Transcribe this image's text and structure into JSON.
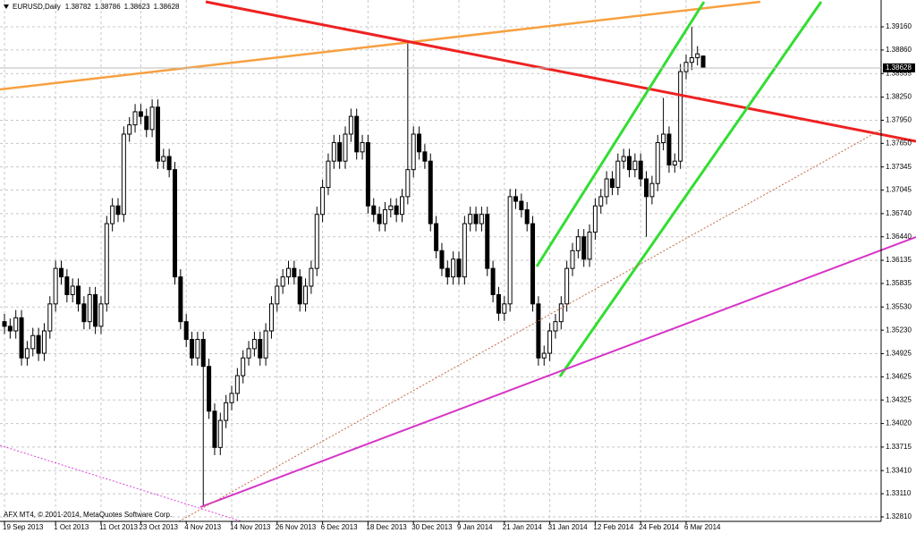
{
  "chart_data": {
    "type": "candlestick",
    "title": "EURUSD,Daily",
    "annotation": "AFX MT4, © 2001-2014, MetaQuotes Software Corp.",
    "categories": [
      "19 Sep 2013",
      null,
      null,
      null,
      null,
      null,
      null,
      null,
      null,
      "1 Oct 2013",
      null,
      null,
      null,
      null,
      null,
      null,
      null,
      "11 Oct 2013",
      null,
      null,
      null,
      null,
      null,
      null,
      "23 Oct 2013",
      null,
      null,
      null,
      null,
      null,
      null,
      null,
      "4 Nov 2013",
      null,
      null,
      null,
      null,
      null,
      null,
      null,
      "14 Nov 2013",
      null,
      null,
      null,
      null,
      null,
      null,
      null,
      "26 Nov 2013",
      null,
      null,
      null,
      null,
      null,
      null,
      null,
      "6 Dec 2013",
      null,
      null,
      null,
      null,
      null,
      null,
      null,
      "18 Dec 2013",
      null,
      null,
      null,
      null,
      null,
      null,
      null,
      "30 Dec 2013",
      null,
      null,
      null,
      null,
      null,
      null,
      null,
      "9 Jan 2014",
      null,
      null,
      null,
      null,
      null,
      null,
      null,
      "21 Jan 2014",
      null,
      null,
      null,
      null,
      null,
      null,
      null,
      "31 Jan 2014",
      null,
      null,
      null,
      null,
      null,
      null,
      null,
      "12 Feb 2014",
      null,
      null,
      null,
      null,
      null,
      null,
      null,
      "24 Feb 2014",
      null,
      null,
      null,
      null,
      null,
      null,
      null,
      "6 Mar 2014",
      null,
      null,
      null
    ],
    "open": [
      1.3534,
      1.3528,
      1.3522,
      1.3539,
      1.3487,
      1.3499,
      1.3516,
      1.3493,
      1.3522,
      1.3557,
      1.3603,
      1.3592,
      1.3569,
      1.358,
      1.3557,
      1.3534,
      1.3569,
      1.3528,
      1.3557,
      1.3661,
      1.3684,
      1.3673,
      1.3777,
      1.3789,
      1.3806,
      1.38,
      1.3783,
      1.3812,
      1.3742,
      1.3748,
      1.3731,
      1.3592,
      1.3534,
      1.3511,
      1.3487,
      1.3511,
      1.3476,
      1.3418,
      1.3371,
      1.3406,
      1.3429,
      1.3441,
      1.3464,
      1.3487,
      1.3499,
      1.3511,
      1.3487,
      1.3522,
      1.3557,
      1.358,
      1.3592,
      1.3603,
      1.3592,
      1.3557,
      1.358,
      1.3603,
      1.3673,
      1.3708,
      1.3742,
      1.3766,
      1.3742,
      1.3777,
      1.38,
      1.3754,
      1.3766,
      1.3684,
      1.3673,
      1.3661,
      1.3679,
      1.3684,
      1.3673,
      1.3696,
      1.3731,
      1.3777,
      1.3754,
      1.3742,
      1.3661,
      1.3626,
      1.3603,
      1.3592,
      1.3615,
      1.3592,
      1.3661,
      1.3673,
      1.3661,
      1.3673,
      1.3603,
      1.3569,
      1.3545,
      1.3557,
      1.3696,
      1.369,
      1.3679,
      1.3661,
      1.3557,
      1.3487,
      1.3493,
      1.3522,
      1.3534,
      1.3557,
      1.3603,
      1.3626,
      1.3644,
      1.3615,
      1.365,
      1.3684,
      1.3696,
      1.3719,
      1.3708,
      1.3742,
      1.3748,
      1.3731,
      1.3742,
      1.3719,
      1.3696,
      1.3713,
      1.3766,
      1.3777,
      1.3737,
      1.3742,
      1.3858,
      1.387,
      1.3876,
      1.38782
    ],
    "high": [
      1.3544,
      1.3538,
      1.3549,
      1.3549,
      1.3509,
      1.3526,
      1.3526,
      1.3532,
      1.3567,
      1.3613,
      1.3613,
      1.3602,
      1.359,
      1.359,
      1.3567,
      1.3579,
      1.3579,
      1.3567,
      1.3671,
      1.3694,
      1.3694,
      1.3787,
      1.3799,
      1.3816,
      1.3816,
      1.381,
      1.3822,
      1.3822,
      1.3758,
      1.3758,
      1.3741,
      1.3602,
      1.3544,
      1.3521,
      1.3521,
      1.3521,
      1.3486,
      1.3428,
      1.3416,
      1.3439,
      1.3451,
      1.3474,
      1.3497,
      1.3509,
      1.3521,
      1.3521,
      1.3532,
      1.3567,
      1.359,
      1.3602,
      1.3613,
      1.3613,
      1.3602,
      1.359,
      1.3613,
      1.3683,
      1.3718,
      1.3752,
      1.3776,
      1.3776,
      1.3787,
      1.381,
      1.381,
      1.3776,
      1.3776,
      1.3694,
      1.3683,
      1.3689,
      1.3694,
      1.3694,
      1.3706,
      1.3895,
      1.3787,
      1.3787,
      1.3764,
      1.3752,
      1.3671,
      1.3636,
      1.3613,
      1.3625,
      1.3625,
      1.3671,
      1.3683,
      1.3683,
      1.3683,
      1.3683,
      1.3613,
      1.3579,
      1.3567,
      1.3706,
      1.3706,
      1.37,
      1.3689,
      1.3671,
      1.3567,
      1.3503,
      1.3532,
      1.3544,
      1.3567,
      1.3613,
      1.3636,
      1.3654,
      1.3654,
      1.366,
      1.3694,
      1.3706,
      1.3729,
      1.3729,
      1.3752,
      1.3758,
      1.3758,
      1.3752,
      1.3752,
      1.3729,
      1.3723,
      1.3776,
      1.3824,
      1.3787,
      1.3752,
      1.3868,
      1.388,
      1.3916,
      1.3891,
      1.38786
    ],
    "low": [
      1.3518,
      1.3512,
      1.3512,
      1.3477,
      1.3477,
      1.3489,
      1.3483,
      1.3483,
      1.3512,
      1.3547,
      1.3582,
      1.3559,
      1.3559,
      1.3547,
      1.3524,
      1.3524,
      1.3518,
      1.3518,
      1.3547,
      1.3651,
      1.3663,
      1.3663,
      1.3767,
      1.3779,
      1.379,
      1.3773,
      1.3773,
      1.3732,
      1.3732,
      1.3721,
      1.3582,
      1.3524,
      1.3501,
      1.3477,
      1.3477,
      1.3296,
      1.3408,
      1.3361,
      1.3361,
      1.3396,
      1.3419,
      1.3431,
      1.3454,
      1.3477,
      1.3489,
      1.3477,
      1.3477,
      1.3512,
      1.3547,
      1.357,
      1.3582,
      1.3582,
      1.3547,
      1.3547,
      1.357,
      1.3593,
      1.3663,
      1.3698,
      1.3732,
      1.3732,
      1.3732,
      1.3767,
      1.3744,
      1.3744,
      1.3674,
      1.3663,
      1.3651,
      1.3651,
      1.3669,
      1.3663,
      1.3663,
      1.3686,
      1.3721,
      1.3744,
      1.3732,
      1.3651,
      1.3616,
      1.3593,
      1.3582,
      1.3582,
      1.3582,
      1.3582,
      1.3651,
      1.3651,
      1.3651,
      1.3593,
      1.3559,
      1.3535,
      1.3535,
      1.3547,
      1.368,
      1.3669,
      1.3651,
      1.3547,
      1.3477,
      1.3477,
      1.3483,
      1.3512,
      1.3524,
      1.3547,
      1.3593,
      1.3616,
      1.3605,
      1.3605,
      1.364,
      1.3674,
      1.3686,
      1.3698,
      1.3698,
      1.3732,
      1.3721,
      1.3721,
      1.3709,
      1.3644,
      1.3686,
      1.3703,
      1.3756,
      1.3727,
      1.3727,
      1.3732,
      1.3848,
      1.386,
      1.3866,
      1.38623
    ],
    "close": [
      1.3528,
      1.3522,
      1.3539,
      1.3487,
      1.3499,
      1.3516,
      1.3493,
      1.3522,
      1.3557,
      1.3603,
      1.3592,
      1.3569,
      1.358,
      1.3557,
      1.3534,
      1.3569,
      1.3528,
      1.3557,
      1.3661,
      1.3684,
      1.3673,
      1.3777,
      1.3789,
      1.3806,
      1.38,
      1.3783,
      1.3812,
      1.3742,
      1.3748,
      1.3731,
      1.3592,
      1.3534,
      1.3511,
      1.3487,
      1.3511,
      1.3476,
      1.3418,
      1.3371,
      1.3406,
      1.3429,
      1.3441,
      1.3464,
      1.3487,
      1.3499,
      1.3511,
      1.3487,
      1.3522,
      1.3557,
      1.358,
      1.3592,
      1.3603,
      1.3592,
      1.3557,
      1.358,
      1.3603,
      1.3673,
      1.3708,
      1.3742,
      1.3766,
      1.3742,
      1.3777,
      1.38,
      1.3754,
      1.3766,
      1.3684,
      1.3673,
      1.3661,
      1.3679,
      1.3684,
      1.3673,
      1.3696,
      1.3731,
      1.3777,
      1.3754,
      1.3742,
      1.3661,
      1.3626,
      1.3603,
      1.3592,
      1.3615,
      1.3592,
      1.3661,
      1.3673,
      1.3661,
      1.3673,
      1.3603,
      1.3569,
      1.3545,
      1.3557,
      1.3696,
      1.369,
      1.3679,
      1.3661,
      1.3557,
      1.3487,
      1.3493,
      1.3522,
      1.3534,
      1.3557,
      1.3603,
      1.3626,
      1.3644,
      1.3615,
      1.365,
      1.3684,
      1.3696,
      1.3719,
      1.3708,
      1.3742,
      1.3748,
      1.3731,
      1.3742,
      1.3719,
      1.3696,
      1.3713,
      1.3766,
      1.3777,
      1.3737,
      1.3742,
      1.3858,
      1.387,
      1.3876,
      1.3881,
      1.38628
    ],
    "up_color": "#ffffff",
    "down_color": "#000000",
    "ylim": [
      1.32752,
      1.39508
    ],
    "yticks": [
      {
        "value": 1.3916,
        "label": "1.39160"
      },
      {
        "value": 1.3886,
        "label": "1.38860"
      },
      1.38555,
      {
        "value": 1.3825,
        "label": "1.38250"
      },
      {
        "value": 1.3795,
        "label": "1.37950"
      },
      {
        "value": 1.3765,
        "label": "1.37650"
      },
      1.37345,
      1.37045,
      {
        "value": 1.3674,
        "label": "1.36740"
      },
      {
        "value": 1.3644,
        "label": "1.36440"
      },
      1.36135,
      1.35835,
      {
        "value": 1.3553,
        "label": "1.35530"
      },
      {
        "value": 1.3523,
        "label": "1.35230"
      },
      1.34925,
      1.34625,
      1.34325,
      {
        "value": 1.3402,
        "label": "1.34020"
      },
      1.33715,
      {
        "value": 1.3341,
        "label": "1.33410"
      },
      {
        "value": 1.3311,
        "label": "1.33110"
      },
      {
        "value": 1.3281,
        "label": "1.32810"
      }
    ],
    "grid": true
  }
}
